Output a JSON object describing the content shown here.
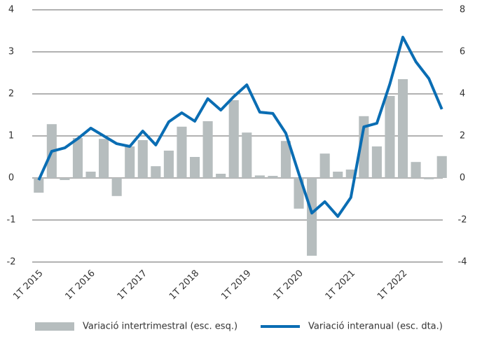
{
  "chart_data": {
    "type": "bar_line",
    "categories": [
      "1T 2015",
      null,
      null,
      null,
      "1T 2016",
      null,
      null,
      null,
      "1T 2017",
      null,
      null,
      null,
      "1T 2018",
      null,
      null,
      null,
      "1T 2019",
      null,
      null,
      null,
      "1T 2020",
      null,
      null,
      null,
      "1T 2021",
      null,
      null,
      null,
      "1T 2022",
      null,
      null,
      null
    ],
    "series": [
      {
        "name": "Variació intertrimestral (esc. esq.)",
        "type": "bar",
        "color": "#b6bdbe",
        "values": [
          -0.35,
          1.28,
          -0.05,
          0.95,
          0.15,
          0.93,
          -0.43,
          0.75,
          0.9,
          0.28,
          0.65,
          1.22,
          0.5,
          1.35,
          0.1,
          1.85,
          1.08,
          0.06,
          0.05,
          0.88,
          -0.73,
          -1.85,
          0.58,
          0.15,
          0.2,
          1.47,
          0.75,
          1.95,
          2.35,
          0.38,
          -0.03,
          0.52
        ]
      },
      {
        "name": "Variació interanual (esc. dta.)",
        "type": "line",
        "axis": "y2",
        "color": "#0a6db3",
        "values": [
          -0.1,
          1.27,
          1.43,
          1.87,
          2.37,
          2.0,
          1.63,
          1.5,
          2.23,
          1.57,
          2.67,
          3.1,
          2.7,
          3.77,
          3.23,
          3.87,
          4.43,
          3.13,
          3.07,
          2.13,
          0.2,
          -1.67,
          -1.13,
          -1.83,
          -0.93,
          2.43,
          2.6,
          4.47,
          6.7,
          5.53,
          4.73,
          3.27
        ]
      }
    ],
    "ylim": [
      -2,
      4
    ],
    "yticks": [
      -2,
      -1,
      0,
      1,
      2,
      3,
      4
    ],
    "y2lim": [
      -4,
      8
    ],
    "y2ticks": [
      -4,
      -2,
      0,
      2,
      4,
      6,
      8
    ],
    "grid": true,
    "legend": "bottom"
  }
}
